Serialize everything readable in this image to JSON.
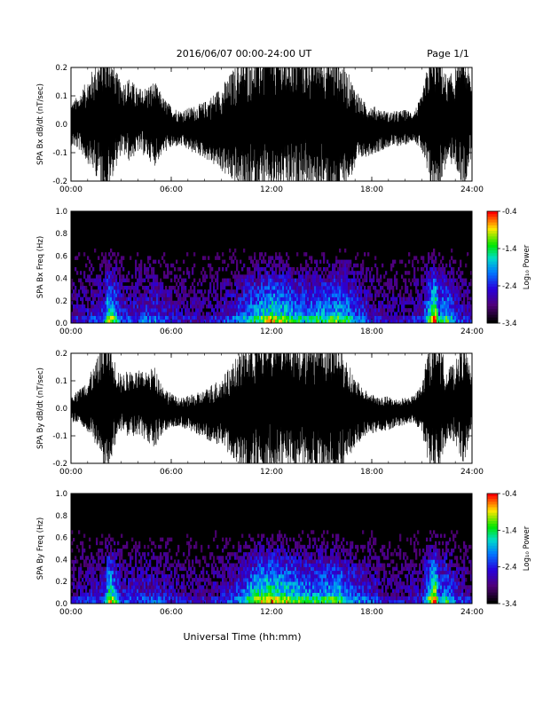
{
  "header": {
    "date_range": "2016/06/07  00:00-24:00 UT",
    "page": "Page 1/1"
  },
  "xaxis": {
    "label": "Universal Time (hh:mm)",
    "ticks": [
      "00:00",
      "06:00",
      "12:00",
      "18:00",
      "24:00"
    ]
  },
  "colorbar": {
    "label": "Log₁₀ Power",
    "ticks": [
      "-0.4",
      "-1.4",
      "-2.4",
      "-3.4"
    ]
  },
  "chart_data": [
    {
      "type": "line",
      "title": "",
      "xlabel": "",
      "ylabel": "SPA Bx dB/dt (nT/sec)",
      "xlim": [
        0,
        24
      ],
      "ylim": [
        -0.2,
        0.2
      ],
      "yticks": [
        "0.2",
        "0.1",
        "0.0",
        "-0.1",
        "-0.2"
      ],
      "series": [
        {
          "x": [
            0,
            0.5,
            1,
            1.5,
            2,
            2.3,
            2.5,
            3,
            3.5,
            4,
            4.5,
            5,
            5.5,
            6,
            6.5,
            7,
            7.5,
            8,
            8.5,
            9,
            9.5,
            10,
            10.5,
            11,
            11.5,
            12,
            12.5,
            13,
            13.5,
            14,
            14.5,
            15,
            15.5,
            16,
            16.5,
            17,
            17.5,
            18,
            18.5,
            19,
            19.5,
            20,
            20.5,
            21,
            21.5,
            21.8,
            22,
            22.5,
            23,
            23.5,
            24
          ],
          "amplitude": [
            0.06,
            0.08,
            0.12,
            0.16,
            0.2,
            0.2,
            0.16,
            0.1,
            0.12,
            0.09,
            0.1,
            0.12,
            0.08,
            0.06,
            0.05,
            0.06,
            0.07,
            0.08,
            0.1,
            0.12,
            0.15,
            0.18,
            0.2,
            0.2,
            0.2,
            0.2,
            0.2,
            0.2,
            0.2,
            0.18,
            0.2,
            0.2,
            0.2,
            0.2,
            0.16,
            0.12,
            0.08,
            0.07,
            0.06,
            0.05,
            0.05,
            0.05,
            0.04,
            0.08,
            0.2,
            0.2,
            0.2,
            0.12,
            0.14,
            0.2,
            0.1
          ]
        }
      ]
    },
    {
      "type": "heatmap",
      "title": "",
      "xlabel": "",
      "ylabel": "SPA Bx Freq (Hz)",
      "xlim": [
        0,
        24
      ],
      "ylim": [
        0,
        1.0
      ],
      "yticks": [
        "1.0",
        "0.8",
        "0.6",
        "0.4",
        "0.2",
        "0.0"
      ],
      "color_range": [
        -3.4,
        -0.4
      ],
      "activity_x": [
        0,
        1,
        2,
        2.3,
        3,
        4,
        5,
        6,
        7,
        8,
        9,
        10,
        11,
        12,
        12.5,
        13,
        14,
        15,
        16,
        16.5,
        17,
        18,
        19,
        20,
        21,
        21.8,
        22,
        22.5,
        23,
        24
      ],
      "activity_level": [
        0.2,
        0.25,
        0.35,
        0.7,
        0.3,
        0.3,
        0.35,
        0.25,
        0.2,
        0.2,
        0.25,
        0.35,
        0.5,
        0.65,
        0.6,
        0.55,
        0.45,
        0.5,
        0.55,
        0.5,
        0.4,
        0.25,
        0.2,
        0.2,
        0.25,
        0.85,
        0.45,
        0.55,
        0.3,
        0.2
      ]
    },
    {
      "type": "line",
      "title": "",
      "xlabel": "",
      "ylabel": "SPA By dB/dt (nT/sec)",
      "xlim": [
        0,
        24
      ],
      "ylim": [
        -0.2,
        0.2
      ],
      "yticks": [
        "0.2",
        "0.1",
        "0.0",
        "-0.1",
        "-0.2"
      ],
      "series": [
        {
          "x": [
            0,
            0.5,
            1,
            1.5,
            2,
            2.3,
            2.5,
            3,
            3.5,
            4,
            4.5,
            5,
            5.5,
            6,
            6.5,
            7,
            7.5,
            8,
            8.5,
            9,
            9.5,
            10,
            10.5,
            11,
            11.5,
            12,
            12.5,
            13,
            13.5,
            14,
            14.5,
            15,
            15.5,
            16,
            16.5,
            17,
            17.5,
            18,
            18.5,
            19,
            19.5,
            20,
            20.5,
            21,
            21.5,
            21.8,
            22,
            22.5,
            23,
            23.5,
            24
          ],
          "amplitude": [
            0.04,
            0.05,
            0.08,
            0.12,
            0.2,
            0.2,
            0.14,
            0.08,
            0.1,
            0.1,
            0.1,
            0.12,
            0.07,
            0.05,
            0.04,
            0.05,
            0.06,
            0.07,
            0.09,
            0.1,
            0.13,
            0.16,
            0.2,
            0.2,
            0.2,
            0.2,
            0.2,
            0.2,
            0.2,
            0.18,
            0.2,
            0.2,
            0.2,
            0.2,
            0.15,
            0.1,
            0.07,
            0.06,
            0.05,
            0.05,
            0.04,
            0.04,
            0.04,
            0.07,
            0.2,
            0.2,
            0.2,
            0.1,
            0.12,
            0.18,
            0.08
          ]
        }
      ]
    },
    {
      "type": "heatmap",
      "title": "",
      "xlabel": "",
      "ylabel": "SPA By Freq (Hz)",
      "xlim": [
        0,
        24
      ],
      "ylim": [
        0,
        1.0
      ],
      "yticks": [
        "1.0",
        "0.8",
        "0.6",
        "0.4",
        "0.2",
        "0.0"
      ],
      "color_range": [
        -3.4,
        -0.4
      ],
      "activity_x": [
        0,
        1,
        2,
        2.3,
        3,
        4,
        5,
        6,
        7,
        8,
        9,
        10,
        11,
        12,
        12.5,
        13,
        14,
        15,
        16,
        16.5,
        17,
        18,
        19,
        20,
        21,
        21.8,
        22,
        22.5,
        23,
        24
      ],
      "activity_level": [
        0.2,
        0.25,
        0.3,
        0.7,
        0.3,
        0.3,
        0.3,
        0.25,
        0.2,
        0.2,
        0.25,
        0.35,
        0.6,
        0.7,
        0.65,
        0.6,
        0.5,
        0.5,
        0.55,
        0.45,
        0.4,
        0.3,
        0.2,
        0.2,
        0.25,
        0.85,
        0.4,
        0.5,
        0.3,
        0.2
      ]
    }
  ]
}
